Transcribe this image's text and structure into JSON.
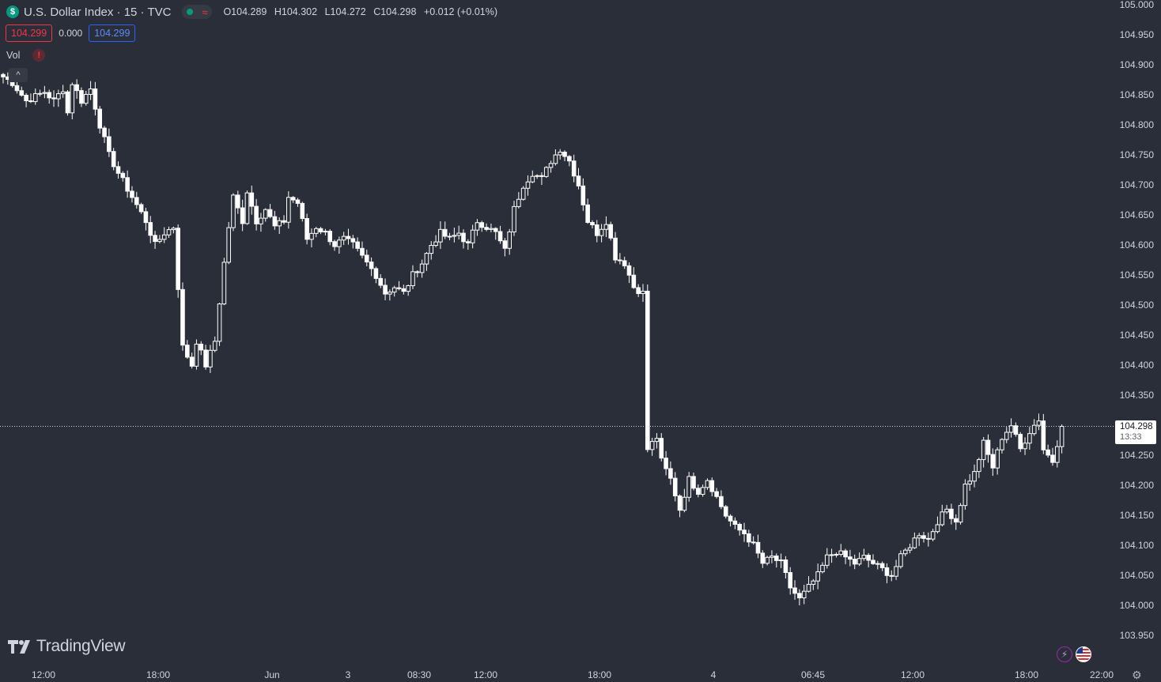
{
  "header": {
    "symbol_title": "U.S. Dollar Index · 15 · TVC",
    "symbol_icon": "dollar-icon",
    "ohlc": {
      "open": "O104.289",
      "high": "H104.302",
      "low": "L104.272",
      "close": "C104.298",
      "change": "+0.012 (+0.01%)"
    }
  },
  "quote": {
    "bid": "104.299",
    "spread": "0.000",
    "ask": "104.299"
  },
  "indicators": {
    "volume_label": "Vol",
    "volume_warning": "!"
  },
  "last_price": {
    "value": "104.298",
    "countdown": "13:33"
  },
  "branding": {
    "logo_text": "TradingView"
  },
  "colors": {
    "background": "#2a2e39",
    "candle": "#ffffff",
    "text": "#d1d4dc",
    "bid": "#f23645",
    "ask": "#2962ff",
    "live": "#089981"
  },
  "chart_data": {
    "type": "candlestick",
    "title": "U.S. Dollar Index · 15 · TVC",
    "ylim": [
      103.95,
      105.0
    ],
    "y_ticks": [
      "103.950",
      "104.000",
      "104.050",
      "104.100",
      "104.150",
      "104.200",
      "104.250",
      "104.300",
      "104.350",
      "104.400",
      "104.450",
      "104.500",
      "104.550",
      "104.600",
      "104.650",
      "104.700",
      "104.750",
      "104.800",
      "104.850",
      "104.900",
      "104.950",
      "105.000"
    ],
    "x_ticks": [
      "12:00",
      "18:00",
      "Jun",
      "3",
      "08:30",
      "12:00",
      "18:00",
      "4",
      "06:45",
      "12:00",
      "18:00",
      "22:00"
    ],
    "last_price": 104.298,
    "close_path": [
      [
        0,
        104.88
      ],
      [
        2,
        104.87
      ],
      [
        5,
        104.84
      ],
      [
        9,
        104.855
      ],
      [
        11,
        104.84
      ],
      [
        13,
        104.86
      ],
      [
        14,
        104.82
      ],
      [
        15,
        104.87
      ],
      [
        17,
        104.84
      ],
      [
        19,
        104.86
      ],
      [
        21,
        104.8
      ],
      [
        23,
        104.75
      ],
      [
        25,
        104.72
      ],
      [
        28,
        104.68
      ],
      [
        31,
        104.64
      ],
      [
        33,
        104.6
      ],
      [
        35,
        104.62
      ],
      [
        37,
        104.63
      ],
      [
        39,
        104.43
      ],
      [
        41,
        104.4
      ],
      [
        42,
        104.44
      ],
      [
        44,
        104.4
      ],
      [
        46,
        104.44
      ],
      [
        48,
        104.57
      ],
      [
        49,
        104.63
      ],
      [
        50,
        104.68
      ],
      [
        52,
        104.64
      ],
      [
        53,
        104.69
      ],
      [
        55,
        104.64
      ],
      [
        57,
        104.66
      ],
      [
        59,
        104.63
      ],
      [
        61,
        104.64
      ],
      [
        62,
        104.68
      ],
      [
        64,
        104.67
      ],
      [
        66,
        104.61
      ],
      [
        68,
        104.63
      ],
      [
        70,
        104.62
      ],
      [
        72,
        104.6
      ],
      [
        74,
        104.61
      ],
      [
        76,
        104.6
      ],
      [
        78,
        104.58
      ],
      [
        81,
        104.55
      ],
      [
        83,
        104.52
      ],
      [
        85,
        104.53
      ],
      [
        87,
        104.52
      ],
      [
        89,
        104.55
      ],
      [
        91,
        104.57
      ],
      [
        93,
        104.6
      ],
      [
        95,
        104.62
      ],
      [
        97,
        104.61
      ],
      [
        99,
        104.62
      ],
      [
        101,
        104.6
      ],
      [
        103,
        104.64
      ],
      [
        105,
        104.63
      ],
      [
        107,
        104.62
      ],
      [
        109,
        104.59
      ],
      [
        111,
        104.66
      ],
      [
        113,
        104.7
      ],
      [
        115,
        104.72
      ],
      [
        117,
        104.71
      ],
      [
        119,
        104.74
      ],
      [
        121,
        104.76
      ],
      [
        123,
        104.74
      ],
      [
        125,
        104.7
      ],
      [
        127,
        104.64
      ],
      [
        129,
        104.62
      ],
      [
        131,
        104.64
      ],
      [
        133,
        104.58
      ],
      [
        135,
        104.57
      ],
      [
        137,
        104.53
      ],
      [
        139,
        104.52
      ],
      [
        140,
        104.26
      ],
      [
        142,
        104.28
      ],
      [
        143,
        104.24
      ],
      [
        145,
        104.21
      ],
      [
        147,
        104.16
      ],
      [
        149,
        104.21
      ],
      [
        151,
        104.19
      ],
      [
        153,
        104.21
      ],
      [
        155,
        104.18
      ],
      [
        157,
        104.15
      ],
      [
        159,
        104.13
      ],
      [
        161,
        104.12
      ],
      [
        163,
        104.1
      ],
      [
        165,
        104.07
      ],
      [
        167,
        104.08
      ],
      [
        169,
        104.07
      ],
      [
        171,
        104.03
      ],
      [
        173,
        104.01
      ],
      [
        175,
        104.03
      ],
      [
        177,
        104.05
      ],
      [
        179,
        104.08
      ],
      [
        181,
        104.09
      ],
      [
        183,
        104.08
      ],
      [
        185,
        104.07
      ],
      [
        187,
        104.08
      ],
      [
        189,
        104.07
      ],
      [
        191,
        104.06
      ],
      [
        193,
        104.05
      ],
      [
        195,
        104.08
      ],
      [
        197,
        104.1
      ],
      [
        199,
        104.12
      ],
      [
        201,
        104.11
      ],
      [
        203,
        104.14
      ],
      [
        205,
        104.16
      ],
      [
        207,
        104.14
      ],
      [
        209,
        104.2
      ],
      [
        211,
        104.22
      ],
      [
        213,
        104.27
      ],
      [
        215,
        104.23
      ],
      [
        217,
        104.28
      ],
      [
        219,
        104.3
      ],
      [
        221,
        104.26
      ],
      [
        223,
        104.29
      ],
      [
        225,
        104.31
      ],
      [
        226,
        104.26
      ],
      [
        228,
        104.24
      ],
      [
        229,
        104.27
      ],
      [
        230,
        104.298
      ]
    ],
    "candle_count": 231
  }
}
